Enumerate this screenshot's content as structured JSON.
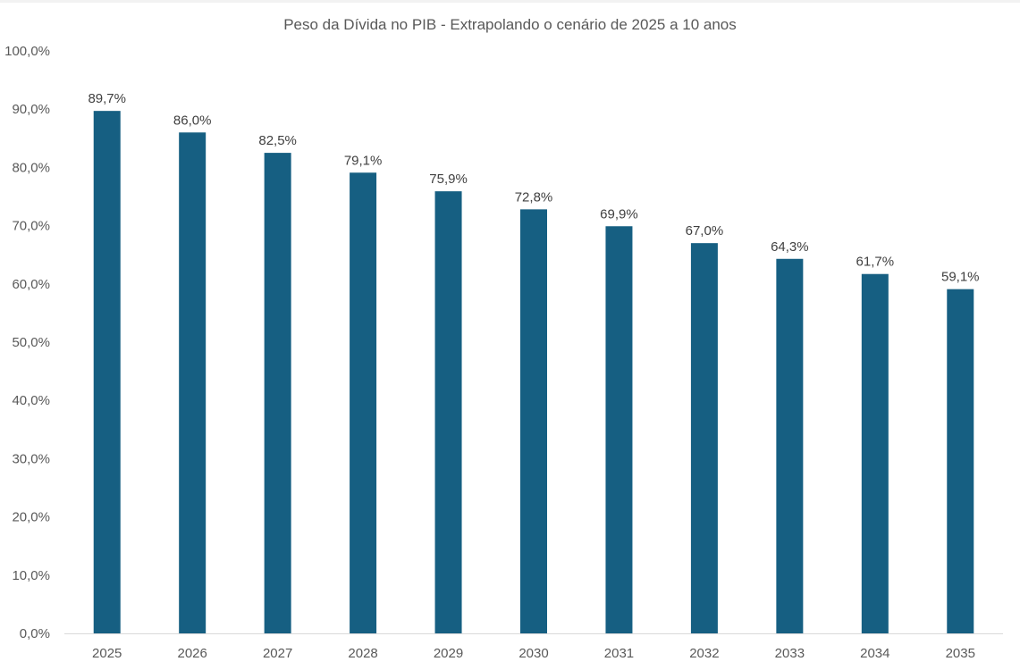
{
  "chart_data": {
    "type": "bar",
    "title": "Peso da Dívida no PIB - Extrapolando o cenário de 2025 a 10 anos",
    "xlabel": "",
    "ylabel": "",
    "categories": [
      "2025",
      "2026",
      "2027",
      "2028",
      "2029",
      "2030",
      "2031",
      "2032",
      "2033",
      "2034",
      "2035"
    ],
    "values": [
      89.7,
      86.0,
      82.5,
      79.1,
      75.9,
      72.8,
      69.9,
      67.0,
      64.3,
      61.7,
      59.1
    ],
    "data_labels": [
      "89,7%",
      "86,0%",
      "82,5%",
      "79,1%",
      "75,9%",
      "72,8%",
      "69,9%",
      "67,0%",
      "64,3%",
      "61,7%",
      "59,1%"
    ],
    "yticks": [
      0,
      10,
      20,
      30,
      40,
      50,
      60,
      70,
      80,
      90,
      100
    ],
    "ytick_labels": [
      "0,0%",
      "10,0%",
      "20,0%",
      "30,0%",
      "40,0%",
      "50,0%",
      "60,0%",
      "70,0%",
      "80,0%",
      "90,0%",
      "100,0%"
    ],
    "ylim": [
      0,
      100
    ],
    "grid": false,
    "legend": "none",
    "bar_color": "#165f82",
    "axis_color": "#d9d9d9"
  }
}
